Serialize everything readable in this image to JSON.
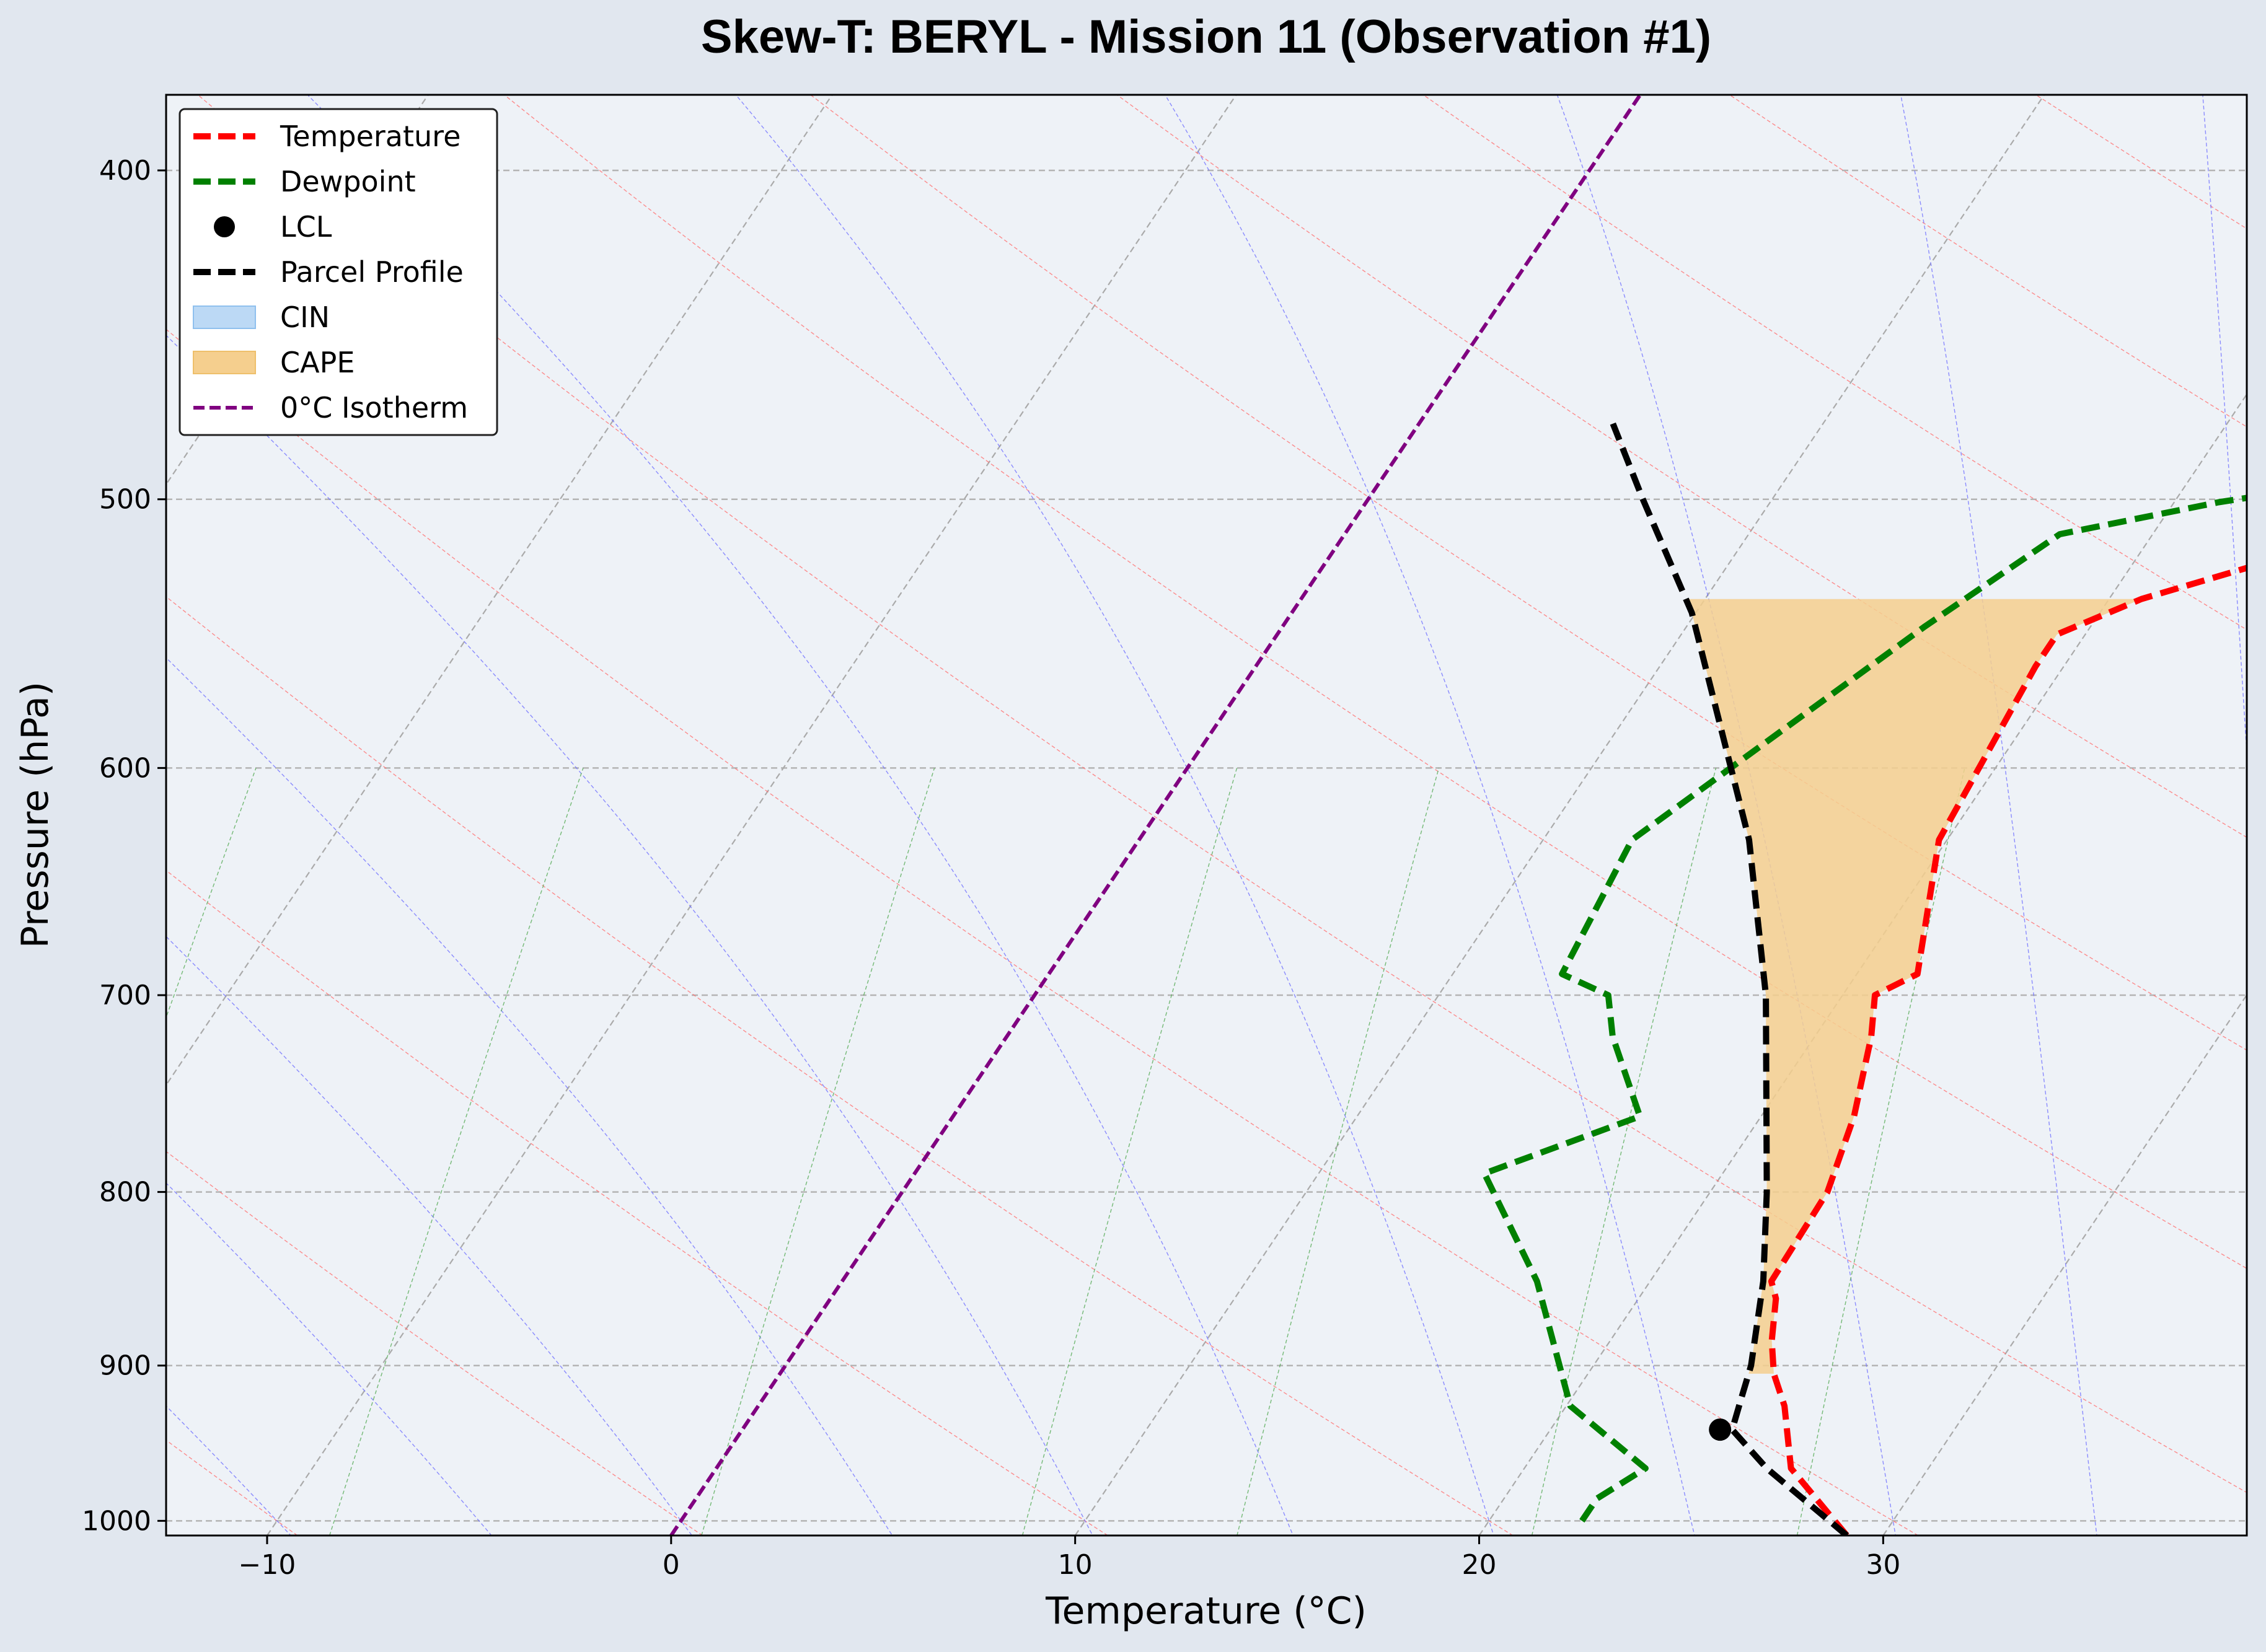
{
  "chart_data": {
    "type": "line",
    "title": "Skew-T: BERYL - Mission 11 (Observation #1)",
    "xlabel": "Temperature (°C)",
    "ylabel": "Pressure (hPa)",
    "xlim": [
      -12.5,
      39
    ],
    "ylim": [
      1010,
      380
    ],
    "y_scale": "log",
    "skew_per_log_decade": 56.5,
    "x_ticks": [
      -10,
      0,
      10,
      20,
      30
    ],
    "y_ticks": [
      400,
      500,
      600,
      700,
      800,
      900,
      1000
    ],
    "grid": true,
    "legend_position": "top-left",
    "series": [
      {
        "name": "Temperature",
        "color": "#ff0000",
        "style": "dashed",
        "points": [
          [
            1010,
            29.1
          ],
          [
            965,
            26.6
          ],
          [
            925,
            25.4
          ],
          [
            905,
            24.6
          ],
          [
            885,
            24.0
          ],
          [
            860,
            23.4
          ],
          [
            850,
            23.0
          ],
          [
            800,
            22.9
          ],
          [
            760,
            22.3
          ],
          [
            720,
            21.4
          ],
          [
            700,
            20.8
          ],
          [
            690,
            21.5
          ],
          [
            630,
            19.8
          ],
          [
            560,
            19.3
          ],
          [
            548,
            19.3
          ],
          [
            535,
            20.8
          ],
          [
            500,
            27.5
          ],
          [
            475,
            28.3
          ]
        ]
      },
      {
        "name": "Dewpoint",
        "color": "#008000",
        "style": "dashed",
        "points": [
          [
            1000,
            22.3
          ],
          [
            985,
            22.3
          ],
          [
            965,
            23.0
          ],
          [
            925,
            20.1
          ],
          [
            850,
            17.2
          ],
          [
            790,
            14.1
          ],
          [
            760,
            17.0
          ],
          [
            720,
            15.0
          ],
          [
            700,
            14.2
          ],
          [
            690,
            12.7
          ],
          [
            630,
            12.2
          ],
          [
            545,
            15.9
          ],
          [
            512,
            17.7
          ],
          [
            501,
            21.1
          ],
          [
            497,
            22.8
          ],
          [
            488,
            22.8
          ],
          [
            475,
            22.9
          ]
        ]
      },
      {
        "name": "Parcel Profile",
        "color": "#000000",
        "style": "dashed",
        "points": [
          [
            1010,
            29.1
          ],
          [
            965,
            26.0
          ],
          [
            940,
            24.5
          ],
          [
            920,
            24.2
          ],
          [
            900,
            23.9
          ],
          [
            850,
            22.8
          ],
          [
            800,
            21.4
          ],
          [
            700,
            18.1
          ],
          [
            630,
            15.1
          ],
          [
            540,
            9.9
          ],
          [
            500,
            6.8
          ],
          [
            475,
            4.8
          ]
        ]
      }
    ],
    "lcl": {
      "pressure": 940,
      "temperature": 24.2
    },
    "cape_region": {
      "label": "CAPE",
      "color": "#f5cf8e",
      "p_range": [
        905,
        535
      ]
    },
    "cin_region": {
      "label": "CIN",
      "color": "#bcd9f5"
    },
    "isotherm_0c": {
      "label": "0°C Isotherm",
      "color": "#800080",
      "style": "dashed"
    },
    "legend": [
      {
        "label": "Temperature",
        "kind": "line",
        "color": "#ff0000"
      },
      {
        "label": "Dewpoint",
        "kind": "line",
        "color": "#008000"
      },
      {
        "label": "LCL",
        "kind": "marker",
        "color": "#000000"
      },
      {
        "label": "Parcel Profile",
        "kind": "line",
        "color": "#000000"
      },
      {
        "label": "CIN",
        "kind": "patch",
        "color": "#bcd9f5"
      },
      {
        "label": "CAPE",
        "kind": "patch",
        "color": "#f5cf8e"
      },
      {
        "label": "0°C Isotherm",
        "kind": "line",
        "color": "#800080"
      }
    ]
  }
}
